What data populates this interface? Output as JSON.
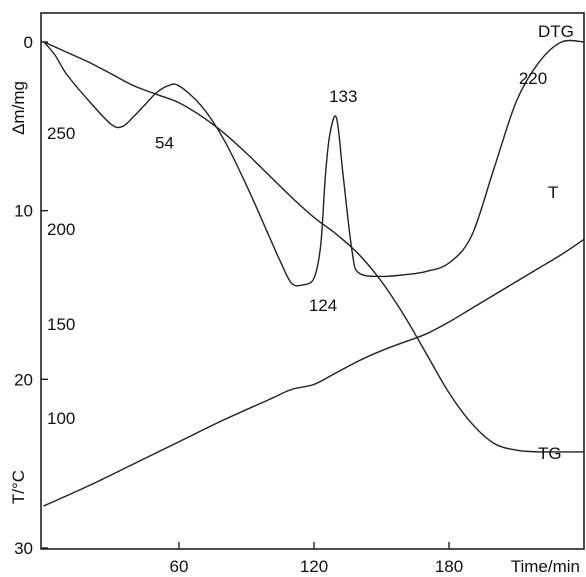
{
  "chart_data": {
    "type": "line",
    "x_axis": {
      "label": "Time/min",
      "ticks": [
        60,
        120,
        180
      ],
      "range": [
        0,
        240
      ]
    },
    "y_axis_left": {
      "label": "Δm/mg",
      "ticks": [
        0,
        10,
        20,
        30
      ],
      "range": [
        0,
        30
      ],
      "inverted": true
    },
    "y_axis_temperature": {
      "label": "T/°C",
      "ticks": [
        250,
        200,
        150,
        100
      ]
    },
    "series": [
      {
        "name": "TG",
        "x": [
          0,
          10,
          20,
          30,
          40,
          50,
          60,
          70,
          80,
          90,
          100,
          110,
          120,
          130,
          140,
          150,
          160,
          170,
          180,
          190,
          200,
          210,
          220,
          230,
          240
        ],
        "y": [
          0.0,
          0.6,
          1.2,
          1.9,
          2.6,
          3.1,
          3.6,
          4.4,
          5.4,
          6.6,
          7.9,
          9.2,
          10.4,
          11.4,
          12.6,
          14.2,
          16.2,
          18.5,
          20.8,
          22.6,
          23.8,
          24.2,
          24.3,
          24.3,
          24.3
        ]
      },
      {
        "name": "DTG",
        "x": [
          0,
          5,
          10,
          20,
          30,
          35,
          40,
          45,
          50,
          55,
          60,
          70,
          80,
          90,
          100,
          105,
          110,
          115,
          120,
          123,
          125,
          127,
          130,
          133,
          137,
          140,
          150,
          160,
          170,
          180,
          190,
          200,
          210,
          220,
          230,
          240
        ],
        "y": [
          0.0,
          0.8,
          1.9,
          3.5,
          4.9,
          5.0,
          4.4,
          3.7,
          3.0,
          2.6,
          2.6,
          3.8,
          5.8,
          8.5,
          11.5,
          13.0,
          14.3,
          14.4,
          14.0,
          12.0,
          8.0,
          5.5,
          4.5,
          8.0,
          12.5,
          13.7,
          13.9,
          13.8,
          13.6,
          13.1,
          11.5,
          7.5,
          3.5,
          1.2,
          0.0,
          0.0
        ]
      },
      {
        "name": "T",
        "x": [
          0,
          20,
          40,
          60,
          80,
          100,
          110,
          120,
          130,
          140,
          150,
          160,
          170,
          180,
          190,
          200,
          210,
          220,
          230,
          240
        ],
        "y": [
          27.5,
          26.3,
          25.0,
          23.7,
          22.4,
          21.2,
          20.6,
          20.3,
          19.6,
          18.9,
          18.3,
          17.8,
          17.3,
          16.6,
          15.8,
          15.0,
          14.2,
          13.4,
          12.6,
          11.7
        ]
      }
    ],
    "annotations": [
      {
        "text": "54",
        "x": 54,
        "y": 4.9
      },
      {
        "text": "124",
        "x": 124,
        "y": 14.4
      },
      {
        "text": "133",
        "x": 133,
        "y": 4.5
      },
      {
        "text": "220",
        "x": 220,
        "y": 1.2
      }
    ],
    "grid": false,
    "legend": "curve labels at right ends"
  }
}
